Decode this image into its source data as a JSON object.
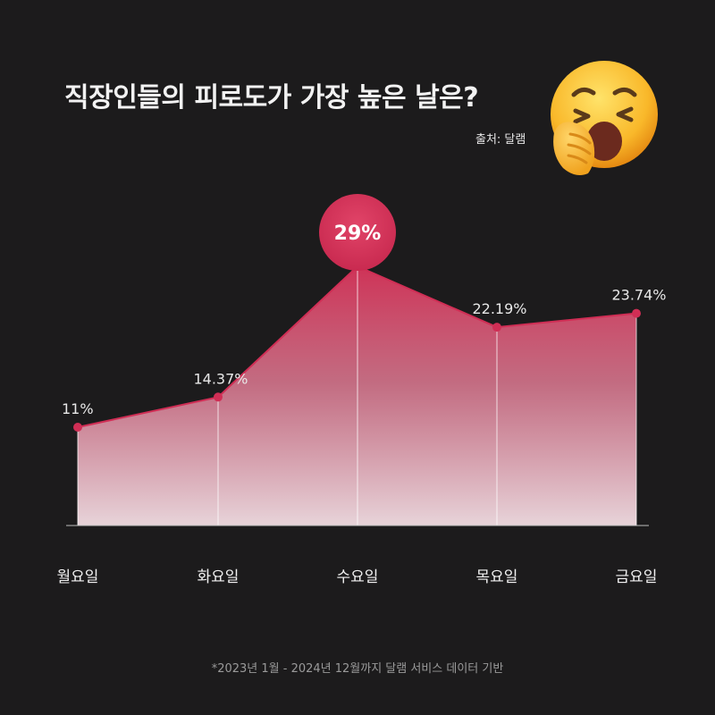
{
  "header": {
    "title": "직장인들의 피로도가 가장 높은 날은?",
    "source": "출처: 달램"
  },
  "emoji_icon": "yawning-face-icon",
  "footnote": "*2023년 1월 - 2024년 12월까지 달램 서비스 데이터 기반",
  "colors": {
    "background": "#1c1b1c",
    "accent": "#d8345a",
    "line": "#d02e55",
    "text": "#f2f2f2"
  },
  "chart_data": {
    "type": "area",
    "title": "직장인들의 피로도가 가장 높은 날은?",
    "categories": [
      "월요일",
      "화요일",
      "수요일",
      "목요일",
      "금요일"
    ],
    "values": [
      11,
      14.37,
      29,
      22.19,
      23.74
    ],
    "data_labels": [
      "11%",
      "14.37%",
      "29%",
      "22.19%",
      "23.74%"
    ],
    "highlight_index": 2,
    "ylim": [
      0,
      32
    ],
    "grid": false,
    "xlabel": "",
    "ylabel": ""
  }
}
